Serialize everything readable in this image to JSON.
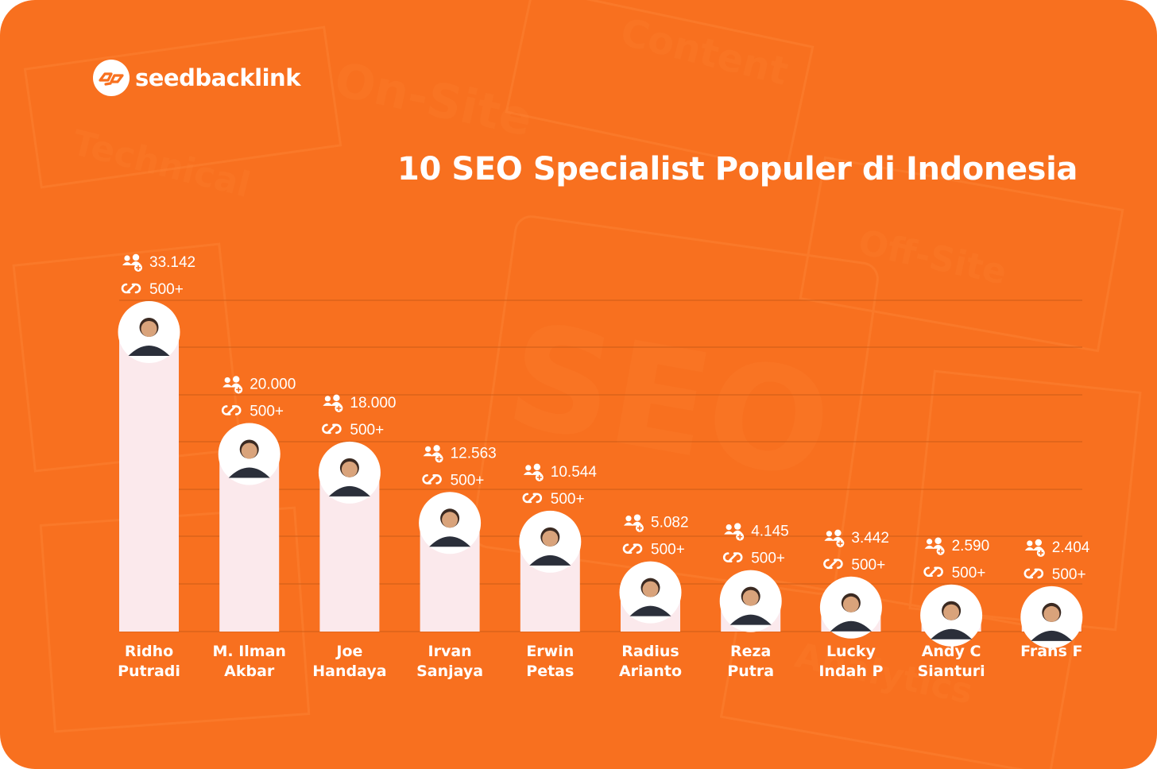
{
  "brand": {
    "name": "seedbacklink",
    "logo_icon": "link-chain-icon"
  },
  "title": "10 SEO Specialist Populer di Indonesia",
  "colors": {
    "background": "#f8701f",
    "bar": "#fbe9ec",
    "text": "#ffffff"
  },
  "chart_data": {
    "type": "bar",
    "title": "10 SEO Specialist Populer di Indonesia",
    "ylim": [
      0,
      35000
    ],
    "grid": true,
    "categories": [
      [
        "Ridho",
        "Putradi"
      ],
      [
        "M. Ilman",
        "Akbar"
      ],
      [
        "Joe",
        "Handaya"
      ],
      [
        "Irvan",
        "Sanjaya"
      ],
      [
        "Erwin",
        "Petas"
      ],
      [
        "Radius",
        "Arianto"
      ],
      [
        "Reza",
        "Putra"
      ],
      [
        "Lucky",
        "Indah P"
      ],
      [
        "Andy C",
        "Sianturi"
      ],
      [
        "Frans F"
      ]
    ],
    "series": [
      {
        "icon": "followers-icon",
        "values": [
          33142,
          20000,
          18000,
          12563,
          10544,
          5082,
          4145,
          3442,
          2590,
          2404
        ],
        "labels": [
          "33.142",
          "20.000",
          "18.000",
          "12.563",
          "10.544",
          "5.082",
          "4.145",
          "3.442",
          "2.590",
          "2.404"
        ]
      },
      {
        "icon": "connections-icon",
        "labels": [
          "500+",
          "500+",
          "500+",
          "500+",
          "500+",
          "500+",
          "500+",
          "500+",
          "500+",
          "500+"
        ]
      }
    ]
  }
}
